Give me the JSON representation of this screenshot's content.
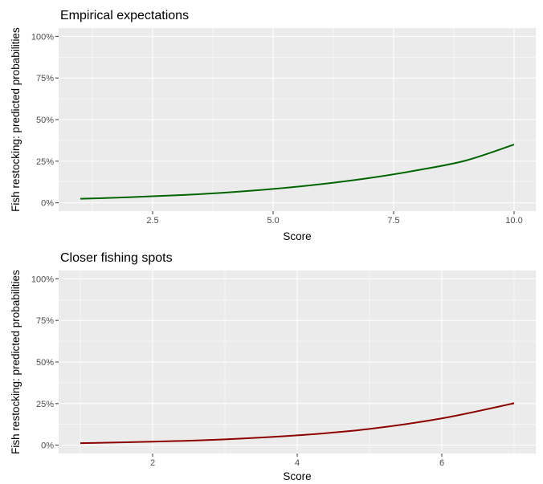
{
  "chart_data": [
    {
      "type": "line",
      "title": "Empirical expectations",
      "xlabel": "Score",
      "ylabel": "Fish restocking: predicted probabilities",
      "xlim": [
        0.55,
        10.45
      ],
      "ylim": [
        -0.05,
        1.05
      ],
      "x_ticks": [
        2.5,
        5.0,
        7.5,
        10.0
      ],
      "x_tick_labels": [
        "2.5",
        "5.0",
        "7.5",
        "10.0"
      ],
      "y_ticks": [
        0,
        0.25,
        0.5,
        0.75,
        1.0
      ],
      "y_tick_labels": [
        "0%",
        "25%",
        "50%",
        "75%",
        "100%"
      ],
      "grid": true,
      "series": [
        {
          "color": "#006400",
          "x": [
            1,
            2,
            3,
            4,
            5,
            6,
            7,
            8,
            9,
            10
          ],
          "y": [
            0.024,
            0.033,
            0.045,
            0.061,
            0.083,
            0.112,
            0.149,
            0.196,
            0.254,
            0.35
          ]
        }
      ]
    },
    {
      "type": "line",
      "title": "Closer fishing spots",
      "xlabel": "Score",
      "ylabel": "Fish restocking: predicted probabilities",
      "xlim": [
        0.7,
        7.3
      ],
      "ylim": [
        -0.05,
        1.05
      ],
      "x_ticks": [
        2,
        4,
        6
      ],
      "x_tick_labels": [
        "2",
        "4",
        "6"
      ],
      "y_ticks": [
        0,
        0.25,
        0.5,
        0.75,
        1.0
      ],
      "y_tick_labels": [
        "0%",
        "25%",
        "50%",
        "75%",
        "100%"
      ],
      "grid": true,
      "series": [
        {
          "color": "#8b0000",
          "x": [
            1,
            2,
            3,
            4,
            5,
            6,
            7
          ],
          "y": [
            0.012,
            0.021,
            0.035,
            0.059,
            0.098,
            0.161,
            0.252
          ]
        }
      ]
    }
  ]
}
